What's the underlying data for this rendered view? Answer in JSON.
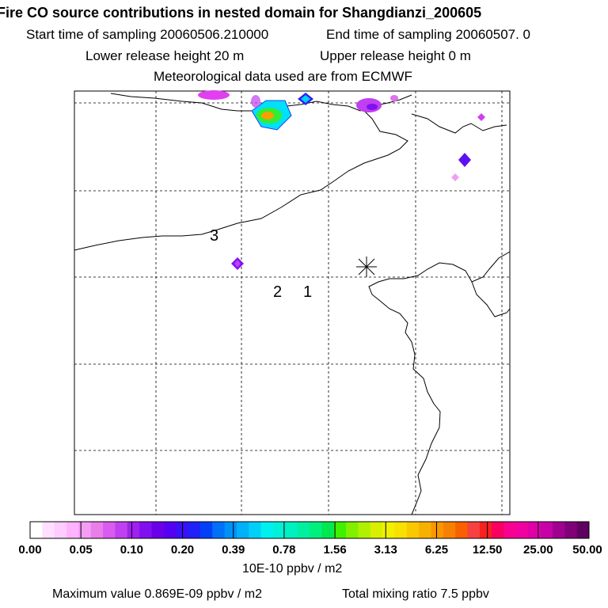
{
  "header": {
    "title": "Fire CO source contributions in nested domain for Shangdianzi_200605",
    "start_label": "Start time of sampling 20060506.210000",
    "end_label": "End time of sampling 20060507.     0",
    "lower_release": "Lower release height   20 m",
    "upper_release": "Upper release height    0 m",
    "met_data": "Meteorological data used are from ECMWF"
  },
  "map": {
    "labels": [
      "3",
      "2",
      "1"
    ],
    "station_marker": "station-star"
  },
  "colorbar": {
    "ticks": [
      "0.00",
      "0.05",
      "0.10",
      "0.20",
      "0.39",
      "0.78",
      "1.56",
      "3.13",
      "6.25",
      "12.50",
      "25.00",
      "50.00"
    ],
    "colors": [
      "#ffffff",
      "#ffe0ff",
      "#ffccff",
      "#ffb3ff",
      "#f59cf5",
      "#e87ee8",
      "#d95bf0",
      "#c040f0",
      "#a020f0",
      "#8010f0",
      "#6a00e8",
      "#5500f0",
      "#3a10f5",
      "#2020f8",
      "#0040f8",
      "#0070f8",
      "#0090f8",
      "#00b0f8",
      "#00d0f8",
      "#00f0f0",
      "#00f0d8",
      "#00f0c0",
      "#00f0a0",
      "#00f080",
      "#00e850",
      "#40f000",
      "#80f000",
      "#b0f000",
      "#d8f000",
      "#f0f000",
      "#f8e000",
      "#f8c800",
      "#f8b000",
      "#f89800",
      "#f88000",
      "#f86000",
      "#f84040",
      "#f82020",
      "#f80060",
      "#f80090",
      "#f000a0",
      "#e000a8",
      "#c800a8",
      "#a00090",
      "#800078",
      "#600060"
    ],
    "units": "10E-10 ppbv / m2"
  },
  "footer": {
    "max_value": "Maximum value  0.869E-09 ppbv / m2",
    "total": "Total mixing ratio       7.5 ppbv"
  }
}
